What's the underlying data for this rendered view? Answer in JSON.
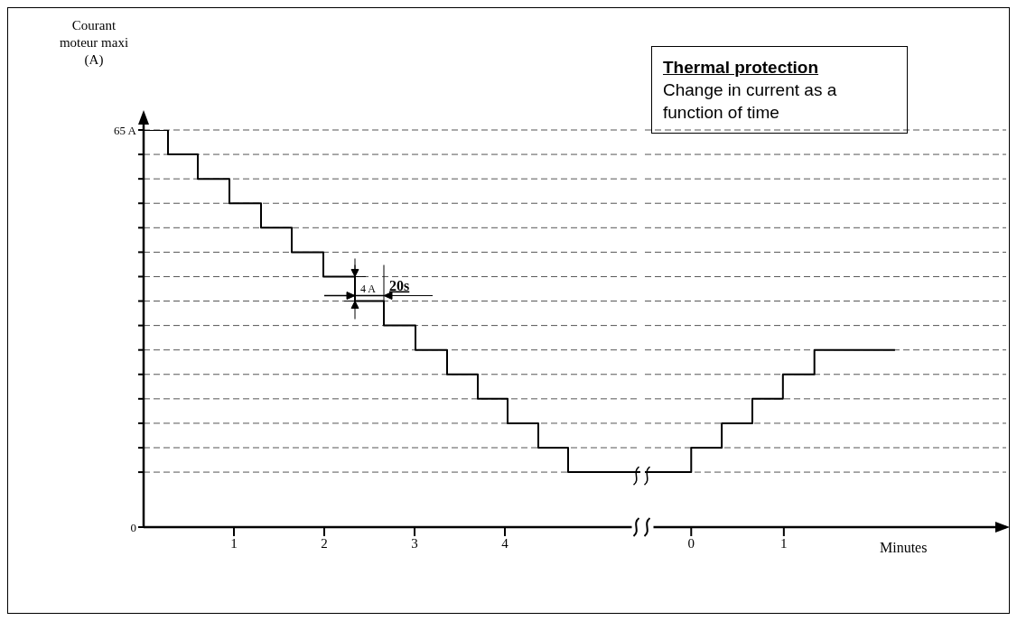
{
  "chart_data": [
    {
      "type": "step",
      "ylabel": "Courant moteur maxi (A)",
      "x": [
        0,
        0.27,
        0.6,
        0.95,
        1.3,
        1.64,
        1.99,
        2.34,
        2.66,
        3.01,
        3.36,
        3.7,
        4.03,
        4.37,
        4.7,
        5.5
      ],
      "values": [
        65,
        61,
        57,
        53,
        49,
        45,
        41,
        37,
        33,
        29,
        25,
        21,
        17,
        13,
        9,
        9
      ],
      "color": "#000000",
      "xlim": [
        0,
        5.5
      ],
      "xticks": [
        1,
        2,
        3,
        4
      ],
      "ylim": [
        0,
        65
      ],
      "yticks": [
        0,
        {
          "value": 65,
          "label": "65 A"
        },
        {
          "value": 61,
          "label": null
        },
        {
          "value": 57,
          "label": null
        },
        {
          "value": 53,
          "label": null
        },
        {
          "value": 49,
          "label": null
        },
        {
          "value": 45,
          "label": null
        },
        {
          "value": 41,
          "label": null
        },
        {
          "value": 37,
          "label": null
        },
        {
          "value": 33,
          "label": null
        },
        {
          "value": 29,
          "label": null
        },
        {
          "value": 25,
          "label": null
        },
        {
          "value": 21,
          "label": null
        },
        {
          "value": 17,
          "label": null
        },
        {
          "value": 13,
          "label": null
        },
        {
          "value": 9,
          "label": null
        }
      ],
      "grid": "y",
      "line_style": "solid",
      "annotations": [
        {
          "text": "20s",
          "x": 2.5,
          "y": 37
        },
        {
          "text": "4 A",
          "x": 2.34,
          "y": 39
        }
      ]
    },
    {
      "type": "step",
      "title": "Thermal protection",
      "subtitle": "Change in current as a function of time",
      "xlabel": "Minutes",
      "x": [
        -0.5,
        0,
        0.33,
        0.66,
        0.99,
        1.33,
        2.2
      ],
      "values": [
        9,
        13,
        17,
        21,
        25,
        29,
        29
      ],
      "color": "#000000",
      "xlim": [
        -0.5,
        3.4
      ],
      "xticks": [
        0,
        1
      ],
      "ylim": [
        0,
        65
      ],
      "grid": "y",
      "line_style": "solid",
      "tick_labels": "x"
    }
  ]
}
